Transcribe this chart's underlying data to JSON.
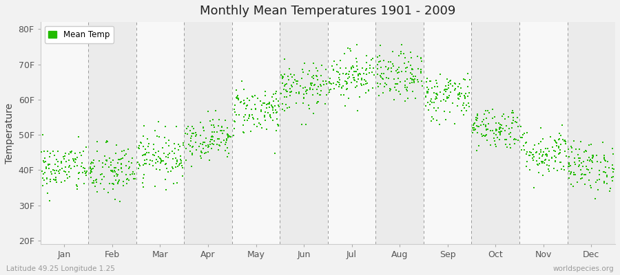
{
  "title": "Monthly Mean Temperatures 1901 - 2009",
  "ylabel": "Temperature",
  "months": [
    "Jan",
    "Feb",
    "Mar",
    "Apr",
    "May",
    "Jun",
    "Jul",
    "Aug",
    "Sep",
    "Oct",
    "Nov",
    "Dec"
  ],
  "yticks": [
    20,
    30,
    40,
    50,
    60,
    70,
    80
  ],
  "ytick_labels": [
    "20F",
    "30F",
    "40F",
    "50F",
    "60F",
    "70F",
    "80F"
  ],
  "ylim": [
    19,
    82
  ],
  "dot_color": "#22bb00",
  "dot_size": 3,
  "bg_color": "#f2f2f2",
  "plot_bg_light": "#f8f8f8",
  "plot_bg_dark": "#ebebeb",
  "vline_color": "#999999",
  "legend_label": "Mean Temp",
  "bottom_left_text": "Latitude 49.25 Longitude 1.25",
  "bottom_right_text": "worldspecies.org",
  "mean_temps_F": [
    40.5,
    39.5,
    44.0,
    49.0,
    57.0,
    63.0,
    67.0,
    66.5,
    61.0,
    52.0,
    45.0,
    41.0
  ],
  "std_temps_F": [
    3.5,
    4.0,
    3.5,
    3.0,
    3.5,
    3.5,
    3.5,
    3.5,
    3.5,
    3.0,
    3.5,
    3.5
  ],
  "n_years": 109,
  "seed": 42
}
